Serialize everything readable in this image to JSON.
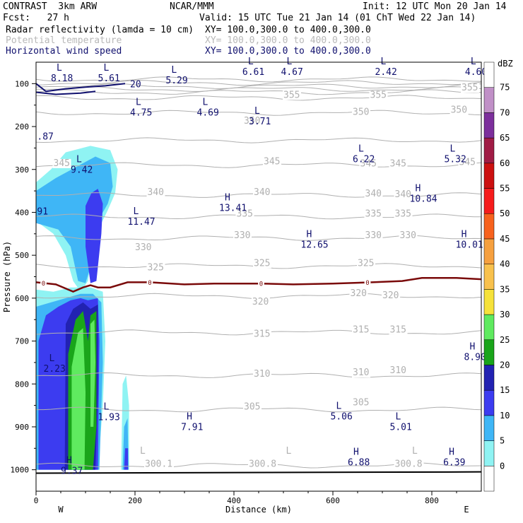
{
  "header": {
    "model": "CONTRAST  3km ARW",
    "center": "NCAR/MMM",
    "init": "Init: 12 UTC Mon 20 Jan 14",
    "fcst": "Fcst:   27 h",
    "valid": "Valid: 15 UTC Tue 21 Jan 14 (01 ChT Wed 22 Jan 14)",
    "fields": [
      {
        "name": "Radar reflectivity (lamda = 10 cm)",
        "xy": "XY= 100.0,300.0 to 400.0,300.0",
        "color": "#000000"
      },
      {
        "name": "Potential temperature",
        "xy": "XY= 100.0,300.0 to 400.0,300.0",
        "color": "#b8b8b8"
      },
      {
        "name": "Horizontal wind speed",
        "xy": "XY= 100.0,300.0 to 400.0,300.0",
        "color": "#10106e"
      }
    ]
  },
  "chart_data": {
    "type": "cross-section",
    "xlabel": "Distance (km)",
    "ylabel": "Pressure (hPa)",
    "xlim": [
      0,
      900
    ],
    "ylim": [
      1050,
      50
    ],
    "xticks": [
      0,
      200,
      400,
      600,
      800
    ],
    "yticks": [
      100,
      200,
      300,
      400,
      500,
      600,
      700,
      800,
      900,
      1000
    ],
    "x_ends": {
      "left": "W",
      "right": "E"
    },
    "colorbar": {
      "unit": "dBZ",
      "levels": [
        0,
        5,
        10,
        15,
        20,
        25,
        30,
        35,
        40,
        45,
        50,
        55,
        60,
        65,
        70,
        75
      ],
      "colors": [
        "#ffffff",
        "#8ff3f3",
        "#3fb6f6",
        "#3c3cf0",
        "#2222b2",
        "#1aa51a",
        "#5fea5f",
        "#f6e23a",
        "#f8c14d",
        "#f6a03f",
        "#f7621d",
        "#f61c1c",
        "#cc1010",
        "#a01c45",
        "#7c2f9c",
        "#c090c7",
        "#ffffff"
      ]
    },
    "theta_labels": [
      {
        "x": 500,
        "p": 133,
        "text": "355"
      },
      {
        "x": 675,
        "p": 133,
        "text": "355"
      },
      {
        "x": 860,
        "p": 116,
        "text": "355"
      },
      {
        "x": 420,
        "p": 193,
        "text": "350"
      },
      {
        "x": 640,
        "p": 173,
        "text": "350"
      },
      {
        "x": 838,
        "p": 168,
        "text": "350"
      },
      {
        "x": 35,
        "p": 292,
        "text": "345"
      },
      {
        "x": 460,
        "p": 288,
        "text": "345"
      },
      {
        "x": 655,
        "p": 293,
        "text": "345"
      },
      {
        "x": 715,
        "p": 293,
        "text": "345"
      },
      {
        "x": 855,
        "p": 290,
        "text": "345"
      },
      {
        "x": 225,
        "p": 360,
        "text": "340"
      },
      {
        "x": 440,
        "p": 360,
        "text": "340"
      },
      {
        "x": 665,
        "p": 363,
        "text": "340"
      },
      {
        "x": 725,
        "p": 365,
        "text": "340"
      },
      {
        "x": 405,
        "p": 410,
        "text": "335"
      },
      {
        "x": 665,
        "p": 410,
        "text": "335"
      },
      {
        "x": 725,
        "p": 410,
        "text": "335"
      },
      {
        "x": 200,
        "p": 488,
        "text": "330"
      },
      {
        "x": 400,
        "p": 460,
        "text": "330"
      },
      {
        "x": 665,
        "p": 460,
        "text": "330"
      },
      {
        "x": 735,
        "p": 460,
        "text": "330"
      },
      {
        "x": 225,
        "p": 535,
        "text": "325"
      },
      {
        "x": 440,
        "p": 525,
        "text": "325"
      },
      {
        "x": 650,
        "p": 525,
        "text": "325"
      },
      {
        "x": 437,
        "p": 615,
        "text": "320"
      },
      {
        "x": 635,
        "p": 595,
        "text": "320"
      },
      {
        "x": 700,
        "p": 600,
        "text": "320"
      },
      {
        "x": 440,
        "p": 690,
        "text": "315"
      },
      {
        "x": 640,
        "p": 680,
        "text": "315"
      },
      {
        "x": 715,
        "p": 680,
        "text": "315"
      },
      {
        "x": 440,
        "p": 783,
        "text": "310"
      },
      {
        "x": 640,
        "p": 780,
        "text": "310"
      },
      {
        "x": 715,
        "p": 775,
        "text": "310"
      },
      {
        "x": 420,
        "p": 860,
        "text": "305"
      },
      {
        "x": 640,
        "p": 850,
        "text": "305"
      },
      {
        "x": 430,
        "p": 993,
        "text": "300.8"
      },
      {
        "x": 725,
        "p": 993,
        "text": "300.8"
      },
      {
        "x": 220,
        "p": 993,
        "text": "300.1"
      }
    ],
    "theta_lows": [
      {
        "x": 210,
        "p": 963
      },
      {
        "x": 505,
        "p": 963
      },
      {
        "x": 760,
        "p": 963
      }
    ],
    "wind_extrema": [
      {
        "type": "L",
        "x": 30,
        "p": 70,
        "value": "8.18"
      },
      {
        "type": "L",
        "x": 125,
        "p": 70,
        "value": "5.61"
      },
      {
        "type": "L",
        "x": 262,
        "p": 75,
        "value": "5.29"
      },
      {
        "type": "L",
        "x": 417,
        "p": 55,
        "value": "6.61"
      },
      {
        "type": "L",
        "x": 495,
        "p": 55,
        "value": "4.67"
      },
      {
        "type": "L",
        "x": 685,
        "p": 55,
        "value": "2.42"
      },
      {
        "type": "L",
        "x": 867,
        "p": 55,
        "value": "4.60"
      },
      {
        "type": "L",
        "x": 190,
        "p": 150,
        "value": "4.75"
      },
      {
        "type": "L",
        "x": 325,
        "p": 150,
        "value": "4.69"
      },
      {
        "type": "L",
        "x": 430,
        "p": 170,
        "value": "3.71"
      },
      {
        "type": "L",
        "x": 640,
        "p": 258,
        "value": "6.22"
      },
      {
        "type": "L",
        "x": 825,
        "p": 258,
        "value": "5.32"
      },
      {
        "type": "L",
        "x": 70,
        "p": 283,
        "value": "9.42"
      },
      {
        "type": "L",
        "x": 185,
        "p": 404,
        "value": "11.47"
      },
      {
        "type": "L",
        "x": 15,
        "p": 747,
        "value": "2.23"
      },
      {
        "type": "L",
        "x": 125,
        "p": 860,
        "value": "1.93"
      },
      {
        "type": "L",
        "x": 595,
        "p": 858,
        "value": "5.06"
      },
      {
        "type": "L",
        "x": 715,
        "p": 883,
        "value": "5.01"
      },
      {
        "type": "H",
        "x": 370,
        "p": 372,
        "value": "13.41"
      },
      {
        "type": "H",
        "x": 535,
        "p": 458,
        "value": "12.65"
      },
      {
        "type": "H",
        "x": 755,
        "p": 351,
        "value": "10.84"
      },
      {
        "type": "H",
        "x": 848,
        "p": 458,
        "value": "10.01"
      },
      {
        "type": "H",
        "x": 865,
        "p": 720,
        "value": "8.90"
      },
      {
        "type": "H",
        "x": 293,
        "p": 883,
        "value": "7.91"
      },
      {
        "type": "H",
        "x": 630,
        "p": 965,
        "value": "6.88"
      },
      {
        "type": "H",
        "x": 823,
        "p": 965,
        "value": "6.39"
      },
      {
        "type": "H",
        "x": 50,
        "p": 985,
        "value": "9.37"
      }
    ],
    "edge_labels": [
      {
        "x": 2,
        "p": 230,
        "text": ".87"
      },
      {
        "x": 2,
        "p": 405,
        "text": "91"
      }
    ],
    "wind_contour_label": {
      "x": 190,
      "p": 100,
      "text": "20"
    },
    "zero_isotherm": {
      "label": "0",
      "label_x": [
        15,
        230,
        455,
        670
      ],
      "points": [
        [
          0,
          563
        ],
        [
          40,
          568
        ],
        [
          75,
          585
        ],
        [
          95,
          575
        ],
        [
          110,
          570
        ],
        [
          125,
          575
        ],
        [
          150,
          575
        ],
        [
          185,
          563
        ],
        [
          230,
          563
        ],
        [
          300,
          568
        ],
        [
          360,
          566
        ],
        [
          455,
          566
        ],
        [
          520,
          568
        ],
        [
          600,
          566
        ],
        [
          680,
          563
        ],
        [
          740,
          560
        ],
        [
          780,
          553
        ],
        [
          850,
          553
        ],
        [
          900,
          556
        ]
      ]
    }
  }
}
